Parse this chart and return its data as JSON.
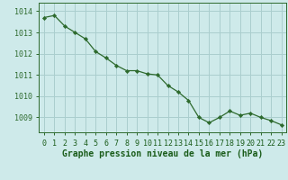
{
  "x": [
    0,
    1,
    2,
    3,
    4,
    5,
    6,
    7,
    8,
    9,
    10,
    11,
    12,
    13,
    14,
    15,
    16,
    17,
    18,
    19,
    20,
    21,
    22,
    23
  ],
  "y": [
    1013.7,
    1013.8,
    1013.3,
    1013.0,
    1012.7,
    1012.1,
    1011.8,
    1011.45,
    1011.2,
    1011.2,
    1011.05,
    1011.0,
    1010.5,
    1010.2,
    1009.8,
    1009.0,
    1008.75,
    1009.0,
    1009.3,
    1009.1,
    1009.2,
    1009.0,
    1008.85,
    1008.65
  ],
  "line_color": "#2d6a2d",
  "marker": "D",
  "marker_size": 2.2,
  "bg_color": "#ceeaea",
  "grid_color": "#aacece",
  "spine_color": "#2d6a2d",
  "title": "Graphe pression niveau de la mer (hPa)",
  "title_color": "#1a5c1a",
  "title_fontsize": 7.0,
  "tick_fontsize": 6.0,
  "ylabel_ticks": [
    1009,
    1010,
    1011,
    1012,
    1013,
    1014
  ],
  "ylim": [
    1008.3,
    1014.4
  ],
  "xlim": [
    -0.5,
    23.5
  ],
  "xtick_labels": [
    "0",
    "1",
    "2",
    "3",
    "4",
    "5",
    "6",
    "7",
    "8",
    "9",
    "10",
    "11",
    "12",
    "13",
    "14",
    "15",
    "16",
    "17",
    "18",
    "19",
    "20",
    "21",
    "22",
    "23"
  ]
}
